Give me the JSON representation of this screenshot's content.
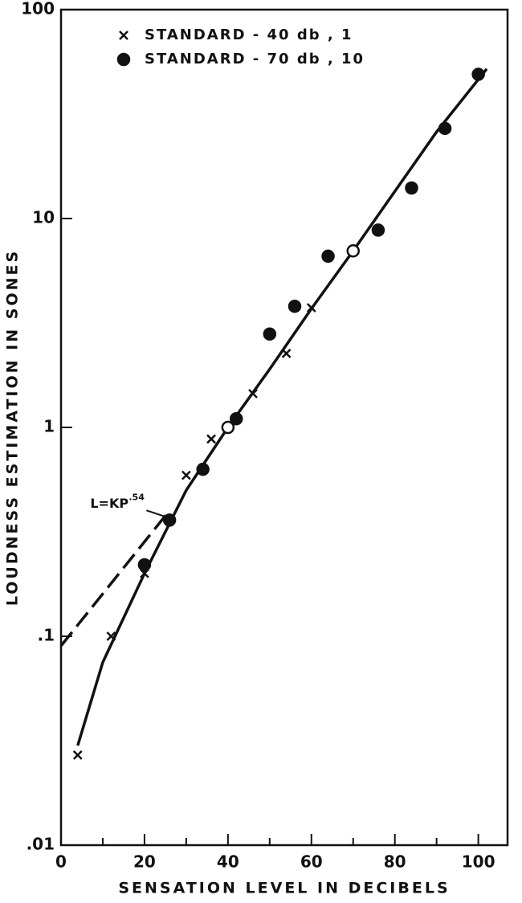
{
  "chart_data": {
    "type": "scatter",
    "x_label": "SENSATION LEVEL IN DECIBELS",
    "y_label": "LOUDNESS ESTIMATION IN SONES",
    "xlim": [
      0,
      107
    ],
    "ylim": [
      0.01,
      100
    ],
    "log_y": true,
    "xticks": [
      0,
      20,
      40,
      60,
      80,
      100
    ],
    "xminorticks": [
      10,
      30,
      50,
      70,
      90
    ],
    "yticks": [
      {
        "value": 0.01,
        "label": ".01"
      },
      {
        "value": 0.1,
        "label": ".1"
      },
      1,
      10,
      100
    ],
    "legend": "top-left",
    "color": "#111111",
    "series": [
      {
        "name": "STANDARD - 40 db , 1",
        "marker": "x",
        "x": [
          4,
          12,
          20,
          30,
          36,
          46,
          54,
          60
        ],
        "values": [
          0.027,
          0.1,
          0.2,
          0.59,
          0.88,
          1.45,
          2.26,
          3.74
        ]
      },
      {
        "name": "STANDARD - 70 db , 10",
        "marker": "o",
        "x": [
          20,
          26,
          34,
          40,
          42,
          50,
          56,
          64,
          70,
          76,
          84,
          92,
          100
        ],
        "values": [
          0.22,
          0.36,
          0.63,
          1.0,
          1.1,
          2.8,
          3.8,
          6.6,
          7.0,
          8.8,
          14,
          27,
          49
        ],
        "hollow": [
          false,
          false,
          false,
          true,
          false,
          false,
          false,
          false,
          true,
          false,
          false,
          false,
          false
        ]
      }
    ],
    "lines": [
      {
        "style": "solid",
        "x": [
          4,
          10,
          20,
          30,
          40,
          50,
          60,
          70,
          80,
          90,
          102
        ],
        "values": [
          0.03,
          0.075,
          0.2,
          0.5,
          1.0,
          1.9,
          3.7,
          7,
          13.5,
          26,
          52
        ]
      },
      {
        "style": "dashed",
        "x": [
          0,
          26
        ],
        "values": [
          0.09,
          0.4
        ]
      }
    ],
    "annotation": {
      "text": "L=KP",
      "superscript": ".54",
      "x": 7,
      "y": 0.43
    }
  }
}
